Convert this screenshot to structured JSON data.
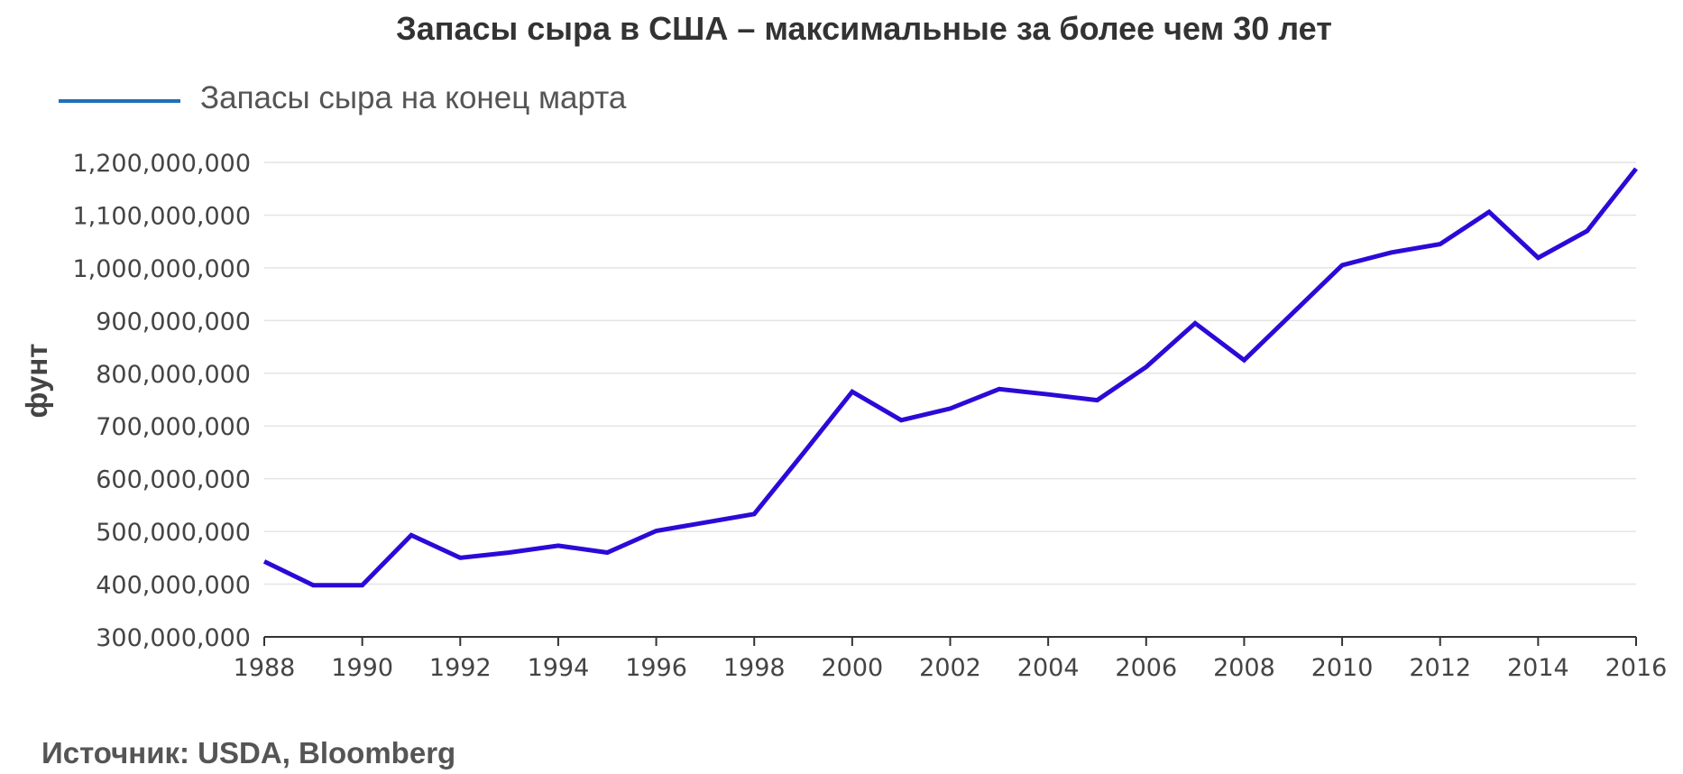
{
  "chart_data": {
    "type": "line",
    "title": "Запасы сыра в США – максимальные за более чем 30 лет",
    "ylabel": "фунт",
    "xlabel": "",
    "source": "Источник: USDA, Bloomberg",
    "ylim": [
      300000000,
      1200000000
    ],
    "xlim": [
      1988,
      2016
    ],
    "grid": true,
    "legend_position": "top-left",
    "yticks": [
      300000000,
      400000000,
      500000000,
      600000000,
      700000000,
      800000000,
      900000000,
      1000000000,
      1100000000,
      1200000000
    ],
    "ytick_labels": [
      "300,000,000",
      "400,000,000",
      "500,000,000",
      "600,000,000",
      "700,000,000",
      "800,000,000",
      "900,000,000",
      "1,000,000,000",
      "1,100,000,000",
      "1,200,000,000"
    ],
    "xticks": [
      1988,
      1990,
      1992,
      1994,
      1996,
      1998,
      2000,
      2002,
      2004,
      2006,
      2008,
      2010,
      2012,
      2014,
      2016
    ],
    "xtick_labels": [
      "1988",
      "1990",
      "1992",
      "1994",
      "1996",
      "1998",
      "2000",
      "2002",
      "2004",
      "2006",
      "2008",
      "2010",
      "2012",
      "2014",
      "2016"
    ],
    "x": [
      1988,
      1989,
      1990,
      1991,
      1992,
      1993,
      1994,
      1995,
      1996,
      1997,
      1998,
      1999,
      2000,
      2001,
      2002,
      2003,
      2004,
      2005,
      2006,
      2007,
      2008,
      2009,
      2010,
      2011,
      2012,
      2013,
      2014,
      2015,
      2016
    ],
    "series": [
      {
        "name": "Запасы сыра на конец марта",
        "color": "#2b0ad8",
        "legend_color": "#1f6fb8",
        "values": [
          443000000,
          398000000,
          398000000,
          493000000,
          450000000,
          460000000,
          473000000,
          460000000,
          501000000,
          517000000,
          533000000,
          648000000,
          765000000,
          711000000,
          733000000,
          770000000,
          760000000,
          749000000,
          812000000,
          895000000,
          825000000,
          915000000,
          1005000000,
          1029000000,
          1045000000,
          1106000000,
          1019000000,
          1070000000,
          1188000000
        ]
      }
    ]
  }
}
